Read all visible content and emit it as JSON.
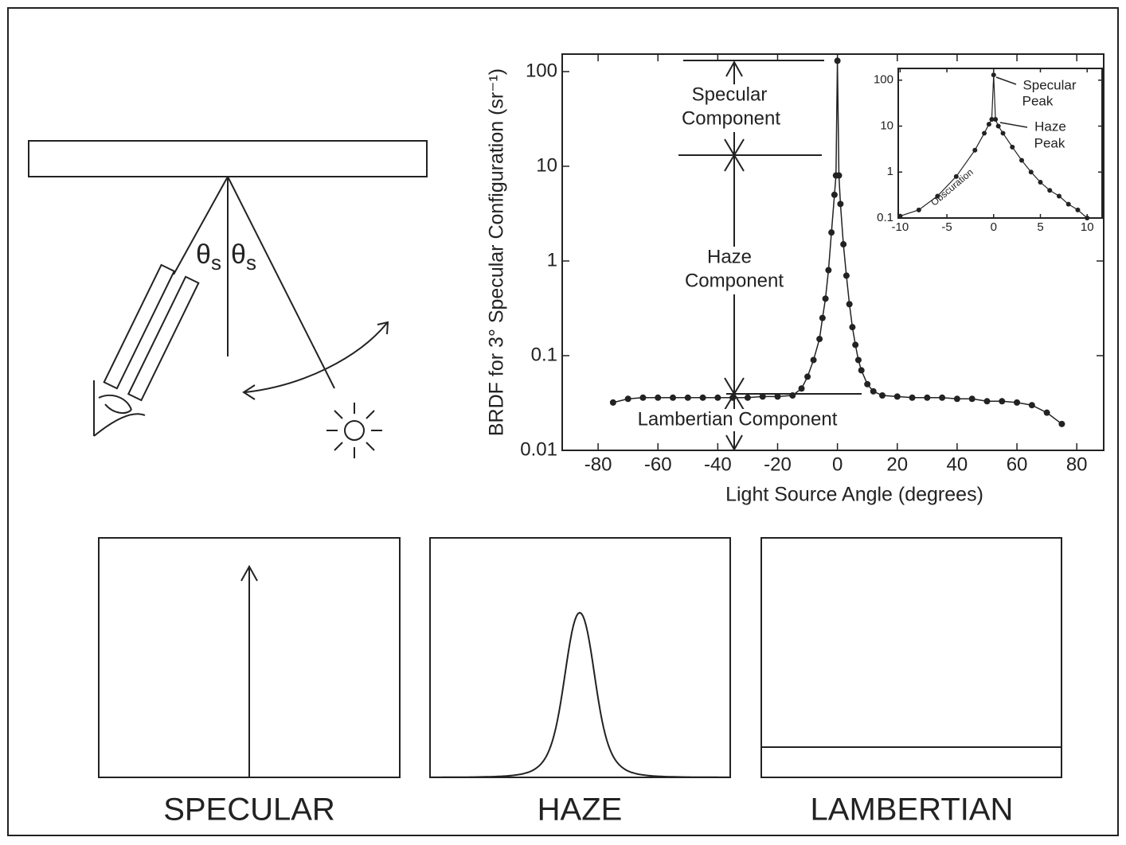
{
  "chart_data": [
    {
      "type": "line",
      "ylabel": "BRDF for 3° Specular Configuration (sr⁻¹)",
      "xlabel": "Light Source Angle (degrees)",
      "yscale": "log",
      "markers": true,
      "color": "#222222",
      "x": [
        -75,
        -70,
        -65,
        -60,
        -55,
        -50,
        -45,
        -40,
        -35,
        -30,
        -25,
        -20,
        -15,
        -12,
        -10,
        -8,
        -6,
        -5,
        -4,
        -3,
        -2,
        -1,
        -0.5,
        0,
        0.5,
        1,
        2,
        3,
        4,
        5,
        6,
        7,
        8,
        10,
        12,
        15,
        20,
        25,
        30,
        35,
        40,
        45,
        50,
        55,
        60,
        65,
        70,
        75
      ],
      "values": [
        0.032,
        0.035,
        0.036,
        0.036,
        0.036,
        0.036,
        0.036,
        0.036,
        0.036,
        0.036,
        0.037,
        0.037,
        0.038,
        0.045,
        0.06,
        0.09,
        0.15,
        0.25,
        0.4,
        0.8,
        2,
        5,
        8,
        130,
        8,
        4,
        1.5,
        0.7,
        0.35,
        0.2,
        0.13,
        0.09,
        0.07,
        0.05,
        0.042,
        0.038,
        0.037,
        0.036,
        0.036,
        0.036,
        0.035,
        0.035,
        0.033,
        0.033,
        0.032,
        0.03,
        0.025,
        0.019
      ],
      "xlim": [
        -92,
        89
      ],
      "xticks": [
        -80,
        -60,
        -40,
        -20,
        0,
        20,
        40,
        60,
        80
      ],
      "ylim": [
        0.01,
        153
      ],
      "yticks": [
        0.01,
        0.1,
        1,
        10,
        100
      ],
      "annotations": {
        "specular": [
          "Specular",
          "Component"
        ],
        "haze": [
          "Haze",
          "Component"
        ],
        "lambertian": "Lambertian Component"
      }
    },
    {
      "type": "line",
      "yscale": "log",
      "markers": true,
      "color": "#222222",
      "x": [
        -10,
        -8,
        -6,
        -4,
        -2,
        -1,
        -0.5,
        -0.2,
        0,
        0.2,
        0.5,
        1,
        2,
        3,
        4,
        5,
        6,
        7,
        8,
        9,
        10
      ],
      "values": [
        0.11,
        0.15,
        0.3,
        0.8,
        3,
        7,
        11,
        14,
        130,
        14,
        10,
        7,
        3.5,
        1.8,
        1,
        0.6,
        0.4,
        0.3,
        0.2,
        0.15,
        0.1
      ],
      "xlim": [
        -10.2,
        11.6
      ],
      "xticks": [
        -10,
        -5,
        0,
        5,
        10
      ],
      "ylim": [
        0.1,
        180
      ],
      "yticks": [
        0.1,
        1,
        10,
        100
      ],
      "annotations": {
        "specular_peak": [
          "Specular",
          "Peak"
        ],
        "haze_peak": [
          "Haze",
          "Peak"
        ],
        "obscuration": "Obscuration"
      }
    }
  ],
  "diagram": {
    "angle_labels": [
      {
        "symbol": "θ",
        "subscript": "s"
      },
      {
        "symbol": "θ",
        "subscript": "s"
      }
    ]
  },
  "panels": [
    {
      "label": "SPECULAR"
    },
    {
      "label": "HAZE"
    },
    {
      "label": "LAMBERTIAN"
    }
  ]
}
